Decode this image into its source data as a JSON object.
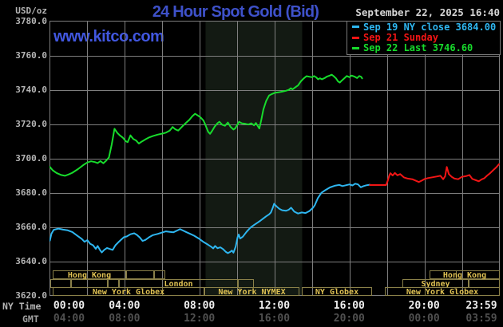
{
  "header": {
    "title": "24 Hour Spot Gold (Bid)",
    "title_color": "#3e51c9",
    "unit_label": "USD/oz",
    "datetime": "September 22, 2025 16:40",
    "watermark": "www.kitco.com",
    "watermark_color": "#4157e0"
  },
  "legend": {
    "items": [
      {
        "label": "Sep 19 NY close 3684.00",
        "color": "#2eb6f0"
      },
      {
        "label": "Sep 21 Sunday",
        "color": "#f21515"
      },
      {
        "label": "Sep 22 Last 3746.60",
        "color": "#17dc2c"
      }
    ]
  },
  "y_axis": {
    "ticks": [
      "3780.0",
      "3760.0",
      "3740.0",
      "3720.0",
      "3700.0",
      "3680.0",
      "3660.0",
      "3640.0",
      "3620.0"
    ]
  },
  "x_axis": {
    "ny_label": "NY Time",
    "gmt_label": "GMT",
    "ny_ticks": [
      "00:00",
      "04:00",
      "08:00",
      "12:00",
      "16:00",
      "20:00",
      "23:59"
    ],
    "gmt_ticks": [
      "04:00",
      "08:00",
      "12:00",
      "16:00",
      "20:00",
      "00:00",
      "03:59"
    ],
    "ny_color": "#efefef",
    "gmt_color": "#505050"
  },
  "sessions": {
    "border_color": "#8a8049",
    "text_color": "#e0c253",
    "rows": [
      [
        {
          "from": 0.17,
          "to": 4.09,
          "label": "Hong Kong",
          "dividers": []
        },
        {
          "from": 4.09,
          "to": 5.58,
          "label": "",
          "dividers": []
        },
        {
          "from": 5.58,
          "to": 6.18,
          "label": "",
          "dividers": []
        },
        {
          "from": 20.29,
          "to": 24,
          "label": "Hong Kong",
          "dividers": [
            21.66
          ]
        }
      ],
      [
        {
          "from": 0,
          "to": 1.11,
          "label": "",
          "dividers": []
        },
        {
          "from": 1.11,
          "to": 3.11,
          "label": "",
          "dividers": []
        },
        {
          "from": 3.11,
          "to": 3.67,
          "label": "",
          "dividers": []
        },
        {
          "from": 3.67,
          "to": 10.06,
          "label": "London",
          "dividers": []
        },
        {
          "from": 10.06,
          "to": 10.91,
          "label": "",
          "dividers": []
        },
        {
          "from": 18.8,
          "to": 22.34,
          "label": "Sydney",
          "dividers": []
        },
        {
          "from": 22.34,
          "to": 24,
          "label": "",
          "dividers": []
        }
      ],
      [
        {
          "from": 0.17,
          "to": 8.23,
          "label": "New York Globex",
          "dividers": [
            6.01
          ]
        },
        {
          "from": 8.23,
          "to": 13.34,
          "label": "New York NYMEX",
          "dividers": [
            10.14
          ]
        },
        {
          "from": 13.43,
          "to": 17.18,
          "label": "NY Globex",
          "dividers": []
        },
        {
          "from": 17.9,
          "to": 24,
          "label": "New York Globex",
          "dividers": [
            20.03
          ]
        }
      ]
    ]
  },
  "chart_data": {
    "type": "line",
    "title": "24 Hour Spot Gold (Bid)",
    "xlabel": "NY Time (hours)",
    "ylabel": "USD/oz",
    "xlim": [
      0,
      24
    ],
    "ylim": [
      3620,
      3780
    ],
    "x_grid_step_hours": 2,
    "y_grid_step": 20,
    "grid_color": "#7e7e7e",
    "shaded_region": {
      "from_hour": 8.31,
      "to_hour": 13.47,
      "color": "#131a13",
      "meaning": "New York NYMEX session"
    },
    "series": [
      {
        "name": "Sep 19 NY close 3684.00",
        "color": "#2eb6f0",
        "points": [
          [
            0.0,
            3652
          ],
          [
            0.08,
            3656
          ],
          [
            0.2,
            3658.3
          ],
          [
            0.45,
            3659
          ],
          [
            0.7,
            3658.4
          ],
          [
            0.95,
            3658
          ],
          [
            1.2,
            3657
          ],
          [
            1.45,
            3655
          ],
          [
            1.7,
            3653
          ],
          [
            1.85,
            3651.3
          ],
          [
            2.0,
            3652.3
          ],
          [
            2.15,
            3650.2
          ],
          [
            2.3,
            3649.3
          ],
          [
            2.45,
            3647.2
          ],
          [
            2.55,
            3648.9
          ],
          [
            2.67,
            3646.6
          ],
          [
            2.77,
            3645.1
          ],
          [
            2.9,
            3646.6
          ],
          [
            3.05,
            3647.7
          ],
          [
            3.2,
            3647.1
          ],
          [
            3.35,
            3646.6
          ],
          [
            3.5,
            3649.3
          ],
          [
            3.65,
            3651
          ],
          [
            3.8,
            3652.5
          ],
          [
            3.95,
            3654
          ],
          [
            4.1,
            3654.4
          ],
          [
            4.3,
            3655.7
          ],
          [
            4.5,
            3656.3
          ],
          [
            4.65,
            3655.3
          ],
          [
            4.8,
            3653.8
          ],
          [
            4.95,
            3651.8
          ],
          [
            5.1,
            3652.4
          ],
          [
            5.3,
            3654
          ],
          [
            5.5,
            3655.2
          ],
          [
            5.75,
            3655.9
          ],
          [
            6.0,
            3656.8
          ],
          [
            6.2,
            3657.4
          ],
          [
            6.4,
            3657.1
          ],
          [
            6.6,
            3656.9
          ],
          [
            6.8,
            3657.9
          ],
          [
            6.95,
            3658.7
          ],
          [
            7.1,
            3657.9
          ],
          [
            7.3,
            3656.9
          ],
          [
            7.5,
            3655.9
          ],
          [
            7.7,
            3654.9
          ],
          [
            7.95,
            3653.2
          ],
          [
            8.2,
            3651.2
          ],
          [
            8.45,
            3649.6
          ],
          [
            8.6,
            3648.5
          ],
          [
            8.72,
            3647.5
          ],
          [
            8.82,
            3648.9
          ],
          [
            8.95,
            3647.6
          ],
          [
            9.1,
            3648.1
          ],
          [
            9.25,
            3647
          ],
          [
            9.4,
            3645.4
          ],
          [
            9.5,
            3644.7
          ],
          [
            9.62,
            3645.4
          ],
          [
            9.72,
            3646.2
          ],
          [
            9.8,
            3645
          ],
          [
            9.92,
            3648.5
          ],
          [
            10.02,
            3654
          ],
          [
            10.08,
            3655.6
          ],
          [
            10.16,
            3653.2
          ],
          [
            10.3,
            3654.3
          ],
          [
            10.5,
            3657.1
          ],
          [
            10.7,
            3659.5
          ],
          [
            10.9,
            3661.1
          ],
          [
            11.1,
            3662.6
          ],
          [
            11.25,
            3663.7
          ],
          [
            11.4,
            3665
          ],
          [
            11.55,
            3666.2
          ],
          [
            11.7,
            3667.3
          ],
          [
            11.8,
            3668.4
          ],
          [
            11.9,
            3671.2
          ],
          [
            11.97,
            3673.5
          ],
          [
            12.1,
            3672
          ],
          [
            12.25,
            3670.5
          ],
          [
            12.4,
            3669.7
          ],
          [
            12.6,
            3669.4
          ],
          [
            12.75,
            3670
          ],
          [
            12.88,
            3671.2
          ],
          [
            13.05,
            3668.9
          ],
          [
            13.25,
            3667.8
          ],
          [
            13.45,
            3668.4
          ],
          [
            13.65,
            3668.1
          ],
          [
            13.85,
            3669.2
          ],
          [
            14.05,
            3671.2
          ],
          [
            14.15,
            3672.8
          ],
          [
            14.3,
            3676.7
          ],
          [
            14.5,
            3679.9
          ],
          [
            14.7,
            3681.4
          ],
          [
            14.95,
            3683
          ],
          [
            15.2,
            3684
          ],
          [
            15.45,
            3684.5
          ],
          [
            15.62,
            3683.8
          ],
          [
            15.8,
            3684.3
          ],
          [
            16.0,
            3684.8
          ],
          [
            16.15,
            3684.2
          ],
          [
            16.3,
            3685.2
          ],
          [
            16.45,
            3684.8
          ],
          [
            16.6,
            3683.1
          ],
          [
            16.75,
            3683.8
          ],
          [
            16.9,
            3684.3
          ],
          [
            17.08,
            3684.6
          ]
        ]
      },
      {
        "name": "Sep 21 Sunday",
        "color": "#f21515",
        "points": [
          [
            17.08,
            3684.4
          ],
          [
            17.5,
            3684.4
          ],
          [
            17.95,
            3684.4
          ],
          [
            18.04,
            3687
          ],
          [
            18.12,
            3690
          ],
          [
            18.18,
            3691.3
          ],
          [
            18.3,
            3690
          ],
          [
            18.42,
            3691.5
          ],
          [
            18.55,
            3690.1
          ],
          [
            18.7,
            3690.8
          ],
          [
            18.9,
            3688.9
          ],
          [
            19.1,
            3688.2
          ],
          [
            19.35,
            3687.8
          ],
          [
            19.55,
            3686.9
          ],
          [
            19.7,
            3686.2
          ],
          [
            19.85,
            3687
          ],
          [
            20.0,
            3687.9
          ],
          [
            20.2,
            3688.5
          ],
          [
            20.45,
            3689
          ],
          [
            20.65,
            3689.4
          ],
          [
            20.85,
            3689.8
          ],
          [
            21.0,
            3687.8
          ],
          [
            21.1,
            3689.5
          ],
          [
            21.19,
            3695
          ],
          [
            21.3,
            3690.8
          ],
          [
            21.45,
            3689.2
          ],
          [
            21.6,
            3688.2
          ],
          [
            21.8,
            3687.8
          ],
          [
            22.0,
            3689.2
          ],
          [
            22.2,
            3689.6
          ],
          [
            22.4,
            3690.3
          ],
          [
            22.55,
            3688
          ],
          [
            22.75,
            3687.2
          ],
          [
            22.9,
            3686.6
          ],
          [
            23.05,
            3687.7
          ],
          [
            23.2,
            3688.4
          ],
          [
            23.35,
            3690
          ],
          [
            23.5,
            3691.3
          ],
          [
            23.68,
            3693.2
          ],
          [
            23.83,
            3694.7
          ],
          [
            23.93,
            3696
          ],
          [
            23.98,
            3696.6
          ]
        ]
      },
      {
        "name": "Sep 22 Last 3746.60",
        "color": "#17dc2c",
        "points": [
          [
            0.0,
            3695
          ],
          [
            0.15,
            3693
          ],
          [
            0.35,
            3691.5
          ],
          [
            0.6,
            3690.3
          ],
          [
            0.8,
            3689.8
          ],
          [
            1.0,
            3690.6
          ],
          [
            1.2,
            3691.6
          ],
          [
            1.5,
            3693.7
          ],
          [
            1.8,
            3696.2
          ],
          [
            2.0,
            3697.6
          ],
          [
            2.2,
            3698.3
          ],
          [
            2.4,
            3697.8
          ],
          [
            2.55,
            3697.2
          ],
          [
            2.7,
            3698.4
          ],
          [
            2.85,
            3697.1
          ],
          [
            3.0,
            3698.6
          ],
          [
            3.15,
            3700.5
          ],
          [
            3.3,
            3708
          ],
          [
            3.45,
            3717.2
          ],
          [
            3.6,
            3714.8
          ],
          [
            3.75,
            3713.2
          ],
          [
            3.9,
            3712
          ],
          [
            4.05,
            3710
          ],
          [
            4.15,
            3709.4
          ],
          [
            4.3,
            3713.4
          ],
          [
            4.45,
            3711.3
          ],
          [
            4.6,
            3710.4
          ],
          [
            4.75,
            3708.6
          ],
          [
            4.9,
            3709.7
          ],
          [
            5.1,
            3711
          ],
          [
            5.3,
            3712.2
          ],
          [
            5.5,
            3713
          ],
          [
            5.75,
            3713.8
          ],
          [
            6.0,
            3714.4
          ],
          [
            6.2,
            3715
          ],
          [
            6.4,
            3716.2
          ],
          [
            6.55,
            3718.3
          ],
          [
            6.7,
            3716.9
          ],
          [
            6.85,
            3716.2
          ],
          [
            7.0,
            3717.8
          ],
          [
            7.1,
            3719
          ],
          [
            7.25,
            3720.5
          ],
          [
            7.45,
            3722.5
          ],
          [
            7.6,
            3724.5
          ],
          [
            7.75,
            3726
          ],
          [
            7.9,
            3725
          ],
          [
            8.05,
            3723.8
          ],
          [
            8.2,
            3722
          ],
          [
            8.32,
            3719
          ],
          [
            8.45,
            3715.5
          ],
          [
            8.55,
            3714.3
          ],
          [
            8.65,
            3715.8
          ],
          [
            8.8,
            3718.5
          ],
          [
            8.95,
            3720.5
          ],
          [
            9.05,
            3721.3
          ],
          [
            9.2,
            3719.6
          ],
          [
            9.35,
            3719
          ],
          [
            9.5,
            3720.9
          ],
          [
            9.65,
            3718.3
          ],
          [
            9.8,
            3716.8
          ],
          [
            9.9,
            3717.5
          ],
          [
            10.0,
            3719.5
          ],
          [
            10.1,
            3721.3
          ],
          [
            10.25,
            3720.4
          ],
          [
            10.45,
            3720.1
          ],
          [
            10.6,
            3719.7
          ],
          [
            10.75,
            3720.4
          ],
          [
            10.9,
            3719.2
          ],
          [
            11.0,
            3720.6
          ],
          [
            11.1,
            3718.8
          ],
          [
            11.18,
            3717.4
          ],
          [
            11.28,
            3722
          ],
          [
            11.4,
            3728.5
          ],
          [
            11.55,
            3733.5
          ],
          [
            11.7,
            3736.6
          ],
          [
            11.85,
            3737.5
          ],
          [
            12.0,
            3738.2
          ],
          [
            12.2,
            3738.5
          ],
          [
            12.4,
            3738.9
          ],
          [
            12.6,
            3739.4
          ],
          [
            12.75,
            3739.9
          ],
          [
            12.87,
            3740.9
          ],
          [
            12.95,
            3740.2
          ],
          [
            13.1,
            3741.4
          ],
          [
            13.25,
            3742.5
          ],
          [
            13.4,
            3744.9
          ],
          [
            13.55,
            3746.6
          ],
          [
            13.7,
            3747.9
          ],
          [
            13.85,
            3747.6
          ],
          [
            14.0,
            3747.3
          ],
          [
            14.1,
            3748
          ],
          [
            14.22,
            3747.2
          ],
          [
            14.32,
            3746.1
          ],
          [
            14.42,
            3746.7
          ],
          [
            14.52,
            3746.1
          ],
          [
            14.65,
            3746.7
          ],
          [
            14.8,
            3747.7
          ],
          [
            14.95,
            3748.3
          ],
          [
            15.05,
            3748.8
          ],
          [
            15.15,
            3747.9
          ],
          [
            15.28,
            3746.6
          ],
          [
            15.38,
            3744.9
          ],
          [
            15.48,
            3744.2
          ],
          [
            15.58,
            3745.3
          ],
          [
            15.72,
            3746.7
          ],
          [
            15.85,
            3748
          ],
          [
            16.0,
            3747.3
          ],
          [
            16.1,
            3748.3
          ],
          [
            16.25,
            3747.7
          ],
          [
            16.4,
            3746.8
          ],
          [
            16.52,
            3748
          ],
          [
            16.62,
            3747.5
          ],
          [
            16.67,
            3746.6
          ]
        ]
      }
    ]
  }
}
